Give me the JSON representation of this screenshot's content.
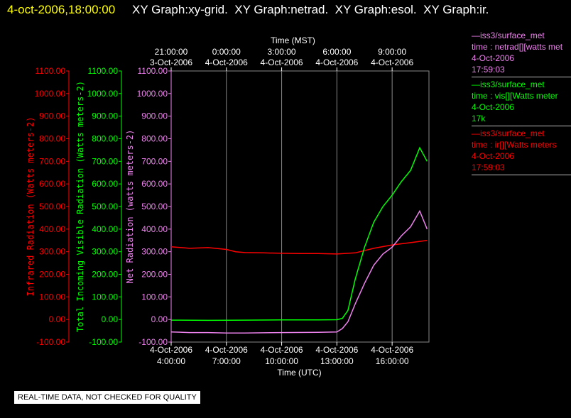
{
  "header": {
    "datetime": "4-oct-2006,18:00:00",
    "graphs": "XY Graph:xy-grid.  XY Graph:netrad.  XY Graph:esol.  XY Graph:ir."
  },
  "legend": [
    {
      "title": "—iss3/surface_met",
      "var": "time : netrad[][watts met",
      "date": "4-Oct-2006",
      "time": "17:59:03",
      "color": "#ee82ee"
    },
    {
      "title": "—iss3/surface_met",
      "var": "time : vis[][Watts meter",
      "date": "4-Oct-2006",
      "time": "17k",
      "color": "#00ff00"
    },
    {
      "title": "—iss3/surface_met",
      "var": "time : ir[][Watts meters",
      "date": "4-Oct-2006",
      "time": "17:59:03",
      "color": "#ff0000"
    }
  ],
  "quality_note": "REAL-TIME DATA, NOT CHECKED FOR QUALITY",
  "chart_data": {
    "type": "line",
    "top_axis": {
      "title": "Time (MST)",
      "ticks": [
        {
          "time": "21:00:00",
          "date": "3-Oct-2006"
        },
        {
          "time": "0:00:00",
          "date": "4-Oct-2006"
        },
        {
          "time": "3:00:00",
          "date": "4-Oct-2006"
        },
        {
          "time": "6:00:00",
          "date": "4-Oct-2006"
        },
        {
          "time": "9:00:00",
          "date": "4-Oct-2006"
        }
      ]
    },
    "bottom_axis": {
      "title": "Time (UTC)",
      "ticks": [
        {
          "date": "4-Oct-2006",
          "time": "4:00:00"
        },
        {
          "date": "4-Oct-2006",
          "time": "7:00:00"
        },
        {
          "date": "4-Oct-2006",
          "time": "10:00:00"
        },
        {
          "date": "4-Oct-2006",
          "time": "13:00:00"
        },
        {
          "date": "4-Oct-2006",
          "time": "16:00:00"
        }
      ]
    },
    "xlim_utc_hours": [
      4.0,
      18.0
    ],
    "tick_hours_utc": [
      4,
      7,
      10,
      13,
      16
    ],
    "ylim": [
      -100,
      1100
    ],
    "y_ticks": [
      "-100.00",
      "0.00",
      "100.00",
      "200.00",
      "300.00",
      "400.00",
      "500.00",
      "600.00",
      "700.00",
      "800.00",
      "900.00",
      "1000.00",
      "1100.00"
    ],
    "y_axes": [
      {
        "label": "Infrared Radiation (Watts meters-2)",
        "color": "#ff0000"
      },
      {
        "label": "Total Incoming Visible Radiation (Watts meters-2)",
        "color": "#00ff00"
      },
      {
        "label": "Net Radiation (watts meters-2)",
        "color": "#ee82ee"
      }
    ],
    "grid": true,
    "series": [
      {
        "name": "ir",
        "color": "#ff0000",
        "x": [
          4.0,
          5.0,
          6.0,
          7.0,
          7.5,
          8.0,
          9.0,
          10.0,
          11.0,
          12.0,
          13.0,
          14.0,
          15.0,
          16.0,
          17.0,
          17.9
        ],
        "y": [
          322,
          315,
          318,
          310,
          300,
          296,
          295,
          293,
          292,
          292,
          290,
          295,
          315,
          330,
          340,
          350
        ]
      },
      {
        "name": "vis",
        "color": "#00ff00",
        "x": [
          4.0,
          6.0,
          8.0,
          10.0,
          12.0,
          13.0,
          13.3,
          13.6,
          14.0,
          14.5,
          15.0,
          15.5,
          16.0,
          16.5,
          17.0,
          17.5,
          17.9
        ],
        "y": [
          -3,
          -4,
          -3,
          -2,
          -2,
          -1,
          5,
          40,
          180,
          320,
          430,
          500,
          550,
          610,
          660,
          760,
          700
        ]
      },
      {
        "name": "netrad",
        "color": "#ee82ee",
        "x": [
          4.0,
          5.0,
          6.0,
          7.0,
          8.0,
          10.0,
          12.0,
          13.0,
          13.3,
          13.6,
          14.0,
          14.5,
          15.0,
          15.5,
          16.0,
          16.5,
          17.0,
          17.5,
          17.9
        ],
        "y": [
          -55,
          -58,
          -58,
          -60,
          -60,
          -58,
          -57,
          -55,
          -40,
          -10,
          70,
          160,
          240,
          290,
          320,
          370,
          410,
          480,
          400
        ]
      }
    ]
  }
}
